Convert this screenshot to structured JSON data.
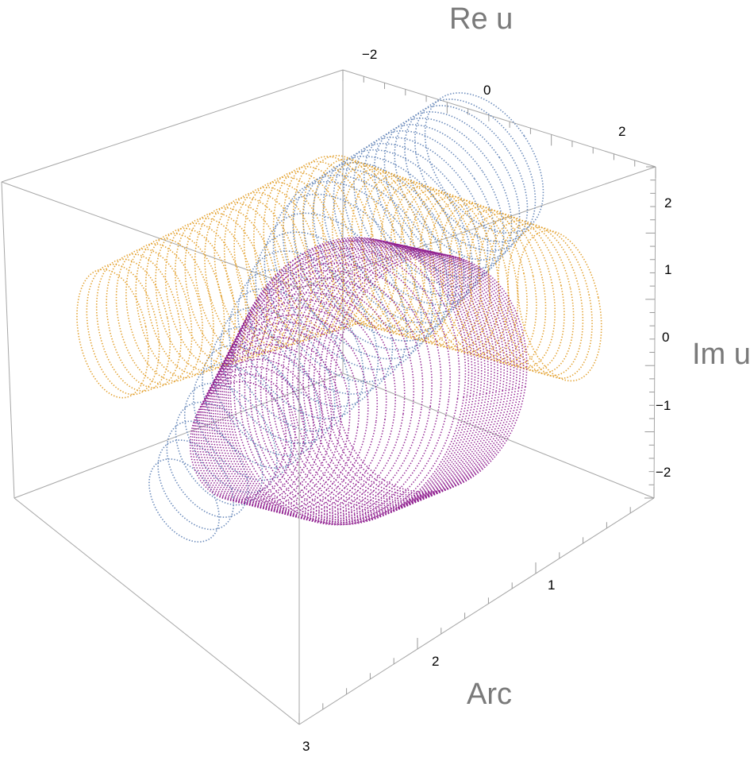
{
  "chart_data": {
    "type": "scatter3d",
    "axes": {
      "re": {
        "label": "Re u",
        "ticks": [
          "−2",
          "0",
          "2"
        ],
        "range": [
          -3,
          3
        ]
      },
      "im": {
        "label": "Im u",
        "ticks": [
          "2",
          "1",
          "0",
          "−1",
          "−2"
        ],
        "range": [
          -2.5,
          2.5
        ]
      },
      "arc": {
        "label": "Arc",
        "ticks": [
          "1",
          "2",
          "3"
        ],
        "range": [
          0,
          3
        ]
      }
    },
    "series": [
      {
        "color": "#5e81b5",
        "tube_count": 30
      },
      {
        "color": "#e19c24",
        "tube_count": 46
      },
      {
        "color": "#8f1f8f",
        "tube_count": 40
      }
    ],
    "grid": false,
    "box": true
  }
}
